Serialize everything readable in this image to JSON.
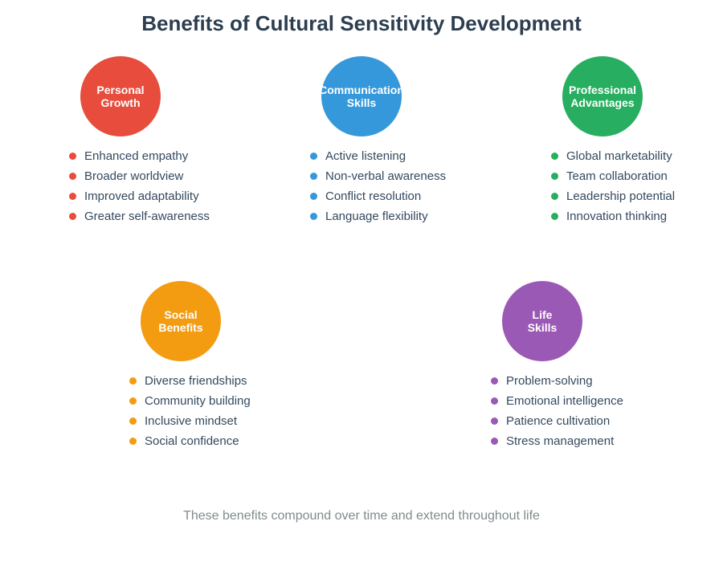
{
  "title": "Benefits of Cultural Sensitivity Development",
  "footer": "These benefits compound over time and extend throughout life",
  "colors": {
    "title_text": "#2c3e50",
    "item_text": "#34495e",
    "footer_text": "#7f8c8d",
    "personal_growth": "#e74c3c",
    "communication_skills": "#3498db",
    "professional_advantages": "#27ae60",
    "social_benefits": "#f39c12",
    "life_skills": "#9b59b6"
  },
  "groups": [
    {
      "label_line1": "Personal",
      "label_line2": "Growth",
      "color": "#e74c3c",
      "items": [
        "Enhanced empathy",
        "Broader worldview",
        "Improved adaptability",
        "Greater self-awareness"
      ]
    },
    {
      "label_line1": "Communication",
      "label_line2": "Skills",
      "color": "#3498db",
      "items": [
        "Active listening",
        "Non-verbal awareness",
        "Conflict resolution",
        "Language flexibility"
      ]
    },
    {
      "label_line1": "Professional",
      "label_line2": "Advantages",
      "color": "#27ae60",
      "items": [
        "Global marketability",
        "Team collaboration",
        "Leadership potential",
        "Innovation thinking"
      ]
    },
    {
      "label_line1": "Social",
      "label_line2": "Benefits",
      "color": "#f39c12",
      "items": [
        "Diverse friendships",
        "Community building",
        "Inclusive mindset",
        "Social confidence"
      ]
    },
    {
      "label_line1": "Life",
      "label_line2": "Skills",
      "color": "#9b59b6",
      "items": [
        "Problem-solving",
        "Emotional intelligence",
        "Patience cultivation",
        "Stress management"
      ]
    }
  ]
}
